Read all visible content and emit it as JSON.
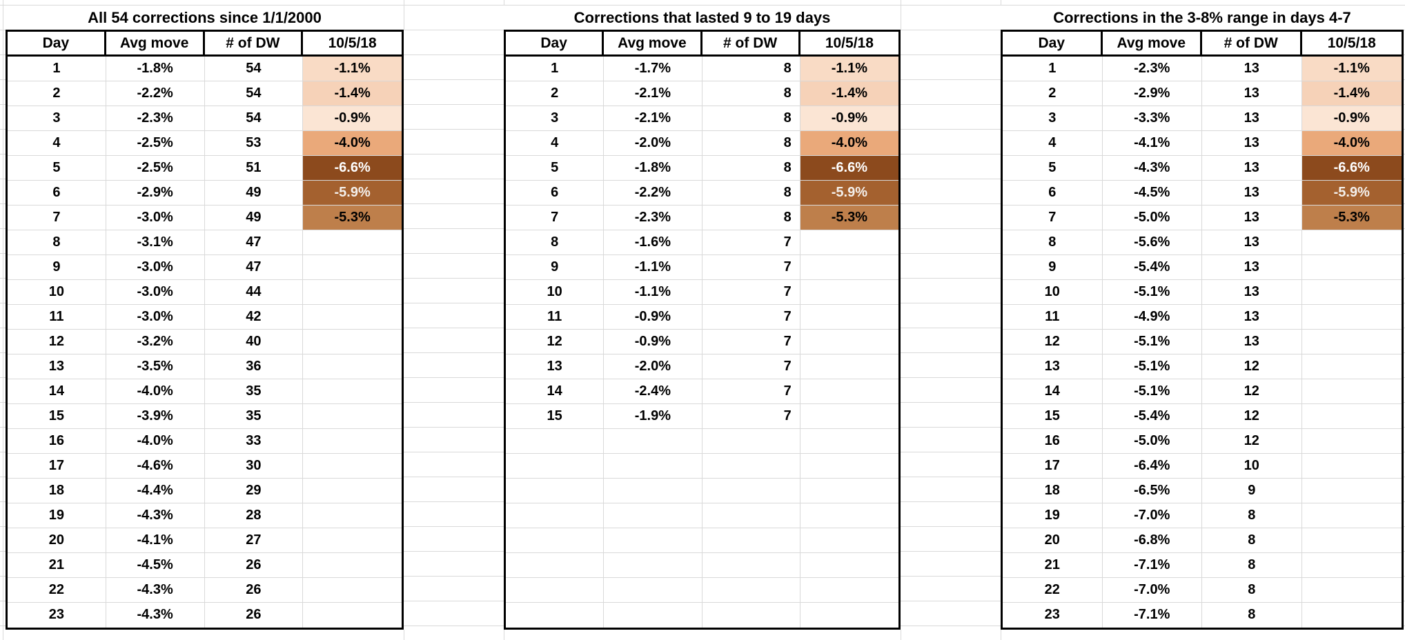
{
  "sheet": {
    "background": "#ffffff",
    "gridline_color": "#d9d9d9",
    "table_border_color": "#000000",
    "text_color": "#000000"
  },
  "heat_scale": [
    {
      "value": "-1.1%",
      "bg": "#f9dbc5",
      "fg": "#000000"
    },
    {
      "value": "-1.4%",
      "bg": "#f6d2b8",
      "fg": "#000000"
    },
    {
      "value": "-0.9%",
      "bg": "#fbe5d4",
      "fg": "#000000"
    },
    {
      "value": "-4.0%",
      "bg": "#eaa97a",
      "fg": "#000000"
    },
    {
      "value": "-6.6%",
      "bg": "#8c4a1d",
      "fg": "#ffffff"
    },
    {
      "value": "-5.9%",
      "bg": "#a4612f",
      "fg": "#f4f0ec"
    },
    {
      "value": "-5.3%",
      "bg": "#be7f4b",
      "fg": "#000000"
    }
  ],
  "tables": [
    {
      "title": "All 54 corrections since 1/1/2000",
      "columns": [
        "Day",
        "Avg move",
        "# of DW",
        "10/5/18"
      ],
      "dw_align": "center",
      "row_slots": 23,
      "rows": [
        {
          "day": "1",
          "avg": "-1.8%",
          "dw": "54",
          "val": "-1.1%"
        },
        {
          "day": "2",
          "avg": "-2.2%",
          "dw": "54",
          "val": "-1.4%"
        },
        {
          "day": "3",
          "avg": "-2.3%",
          "dw": "54",
          "val": "-0.9%"
        },
        {
          "day": "4",
          "avg": "-2.5%",
          "dw": "53",
          "val": "-4.0%"
        },
        {
          "day": "5",
          "avg": "-2.5%",
          "dw": "51",
          "val": "-6.6%"
        },
        {
          "day": "6",
          "avg": "-2.9%",
          "dw": "49",
          "val": "-5.9%"
        },
        {
          "day": "7",
          "avg": "-3.0%",
          "dw": "49",
          "val": "-5.3%"
        },
        {
          "day": "8",
          "avg": "-3.1%",
          "dw": "47",
          "val": ""
        },
        {
          "day": "9",
          "avg": "-3.0%",
          "dw": "47",
          "val": ""
        },
        {
          "day": "10",
          "avg": "-3.0%",
          "dw": "44",
          "val": ""
        },
        {
          "day": "11",
          "avg": "-3.0%",
          "dw": "42",
          "val": ""
        },
        {
          "day": "12",
          "avg": "-3.2%",
          "dw": "40",
          "val": ""
        },
        {
          "day": "13",
          "avg": "-3.5%",
          "dw": "36",
          "val": ""
        },
        {
          "day": "14",
          "avg": "-4.0%",
          "dw": "35",
          "val": ""
        },
        {
          "day": "15",
          "avg": "-3.9%",
          "dw": "35",
          "val": ""
        },
        {
          "day": "16",
          "avg": "-4.0%",
          "dw": "33",
          "val": ""
        },
        {
          "day": "17",
          "avg": "-4.6%",
          "dw": "30",
          "val": ""
        },
        {
          "day": "18",
          "avg": "-4.4%",
          "dw": "29",
          "val": ""
        },
        {
          "day": "19",
          "avg": "-4.3%",
          "dw": "28",
          "val": ""
        },
        {
          "day": "20",
          "avg": "-4.1%",
          "dw": "27",
          "val": ""
        },
        {
          "day": "21",
          "avg": "-4.5%",
          "dw": "26",
          "val": ""
        },
        {
          "day": "22",
          "avg": "-4.3%",
          "dw": "26",
          "val": ""
        },
        {
          "day": "23",
          "avg": "-4.3%",
          "dw": "26",
          "val": ""
        }
      ]
    },
    {
      "title": "Corrections that lasted 9 to 19 days",
      "columns": [
        "Day",
        "Avg move",
        "# of DW",
        "10/5/18"
      ],
      "dw_align": "right",
      "row_slots": 23,
      "rows": [
        {
          "day": "1",
          "avg": "-1.7%",
          "dw": "8",
          "val": "-1.1%"
        },
        {
          "day": "2",
          "avg": "-2.1%",
          "dw": "8",
          "val": "-1.4%"
        },
        {
          "day": "3",
          "avg": "-2.1%",
          "dw": "8",
          "val": "-0.9%"
        },
        {
          "day": "4",
          "avg": "-2.0%",
          "dw": "8",
          "val": "-4.0%"
        },
        {
          "day": "5",
          "avg": "-1.8%",
          "dw": "8",
          "val": "-6.6%"
        },
        {
          "day": "6",
          "avg": "-2.2%",
          "dw": "8",
          "val": "-5.9%"
        },
        {
          "day": "7",
          "avg": "-2.3%",
          "dw": "8",
          "val": "-5.3%"
        },
        {
          "day": "8",
          "avg": "-1.6%",
          "dw": "7",
          "val": ""
        },
        {
          "day": "9",
          "avg": "-1.1%",
          "dw": "7",
          "val": ""
        },
        {
          "day": "10",
          "avg": "-1.1%",
          "dw": "7",
          "val": ""
        },
        {
          "day": "11",
          "avg": "-0.9%",
          "dw": "7",
          "val": ""
        },
        {
          "day": "12",
          "avg": "-0.9%",
          "dw": "7",
          "val": ""
        },
        {
          "day": "13",
          "avg": "-2.0%",
          "dw": "7",
          "val": ""
        },
        {
          "day": "14",
          "avg": "-2.4%",
          "dw": "7",
          "val": ""
        },
        {
          "day": "15",
          "avg": "-1.9%",
          "dw": "7",
          "val": ""
        }
      ]
    },
    {
      "title": "Corrections in the 3-8% range in days 4-7",
      "columns": [
        "Day",
        "Avg move",
        "# of DW",
        "10/5/18"
      ],
      "dw_align": "center",
      "row_slots": 23,
      "rows": [
        {
          "day": "1",
          "avg": "-2.3%",
          "dw": "13",
          "val": "-1.1%"
        },
        {
          "day": "2",
          "avg": "-2.9%",
          "dw": "13",
          "val": "-1.4%"
        },
        {
          "day": "3",
          "avg": "-3.3%",
          "dw": "13",
          "val": "-0.9%"
        },
        {
          "day": "4",
          "avg": "-4.1%",
          "dw": "13",
          "val": "-4.0%"
        },
        {
          "day": "5",
          "avg": "-4.3%",
          "dw": "13",
          "val": "-6.6%"
        },
        {
          "day": "6",
          "avg": "-4.5%",
          "dw": "13",
          "val": "-5.9%"
        },
        {
          "day": "7",
          "avg": "-5.0%",
          "dw": "13",
          "val": "-5.3%"
        },
        {
          "day": "8",
          "avg": "-5.6%",
          "dw": "13",
          "val": ""
        },
        {
          "day": "9",
          "avg": "-5.4%",
          "dw": "13",
          "val": ""
        },
        {
          "day": "10",
          "avg": "-5.1%",
          "dw": "13",
          "val": ""
        },
        {
          "day": "11",
          "avg": "-4.9%",
          "dw": "13",
          "val": ""
        },
        {
          "day": "12",
          "avg": "-5.1%",
          "dw": "13",
          "val": ""
        },
        {
          "day": "13",
          "avg": "-5.1%",
          "dw": "12",
          "val": ""
        },
        {
          "day": "14",
          "avg": "-5.1%",
          "dw": "12",
          "val": ""
        },
        {
          "day": "15",
          "avg": "-5.4%",
          "dw": "12",
          "val": ""
        },
        {
          "day": "16",
          "avg": "-5.0%",
          "dw": "12",
          "val": ""
        },
        {
          "day": "17",
          "avg": "-6.4%",
          "dw": "10",
          "val": ""
        },
        {
          "day": "18",
          "avg": "-6.5%",
          "dw": "9",
          "val": ""
        },
        {
          "day": "19",
          "avg": "-7.0%",
          "dw": "8",
          "val": ""
        },
        {
          "day": "20",
          "avg": "-6.8%",
          "dw": "8",
          "val": ""
        },
        {
          "day": "21",
          "avg": "-7.1%",
          "dw": "8",
          "val": ""
        },
        {
          "day": "22",
          "avg": "-7.0%",
          "dw": "8",
          "val": ""
        },
        {
          "day": "23",
          "avg": "-7.1%",
          "dw": "8",
          "val": ""
        }
      ]
    }
  ]
}
